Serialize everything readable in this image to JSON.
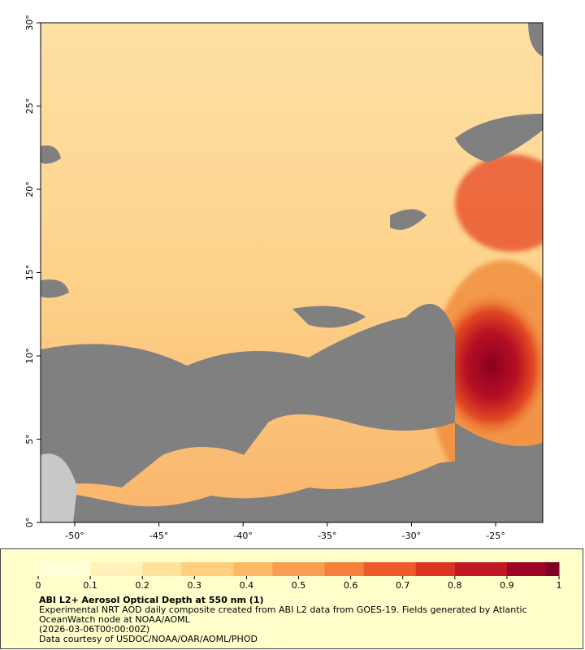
{
  "map": {
    "lat_ticks": [
      "0°",
      "5°",
      "10°",
      "15°",
      "20°",
      "25°",
      "30°"
    ],
    "lon_ticks": [
      "-50°",
      "-45°",
      "-40°",
      "-35°",
      "-30°",
      "-25°"
    ]
  },
  "colorbar": {
    "ticks": [
      0,
      0.1,
      0.2,
      0.3,
      0.4,
      0.5,
      0.6,
      0.7,
      0.8,
      0.9,
      1
    ]
  },
  "caption": {
    "title": "ABI L2+ Aerosol Optical Depth at 550 nm (1)",
    "lines": [
      "Experimental NRT AOD daily composite created from ABI L2 data from GOES-19. Fields generated by Atlantic",
      "OceanWatch node at NOAA/AOML",
      "(2026-03-06T00:00:00Z)",
      "Data courtesy of USDOC/NOAA/OAR/AOML/PHOD"
    ]
  }
}
